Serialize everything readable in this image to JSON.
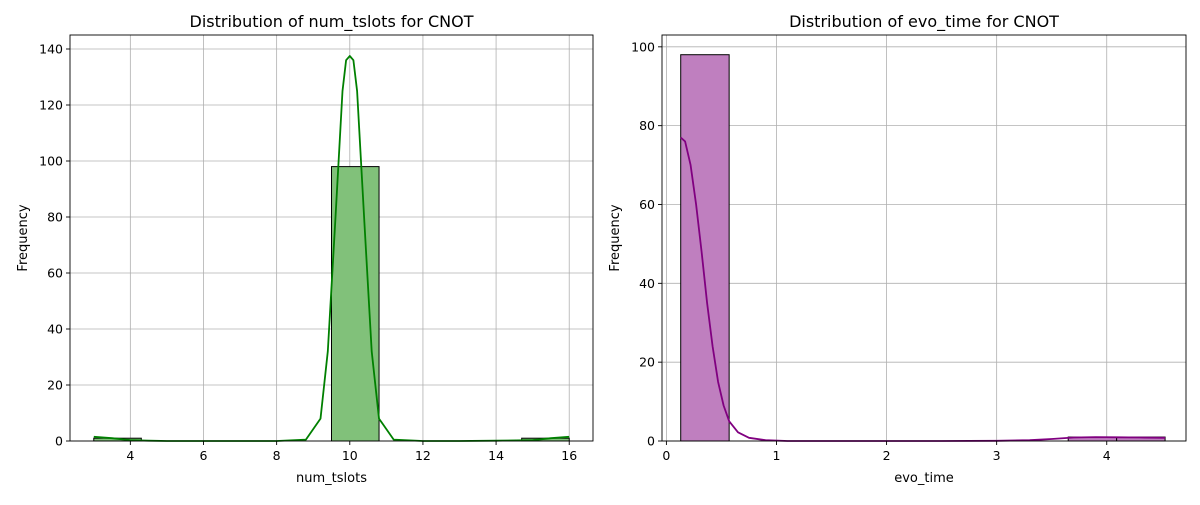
{
  "chart_data": [
    {
      "type": "bar",
      "title": "Distribution of num_tslots for CNOT",
      "xlabel": "num_tslots",
      "ylabel": "Frequency",
      "xlim": [
        2.35,
        16.65
      ],
      "ylim": [
        0,
        145
      ],
      "xticks": [
        4,
        6,
        8,
        10,
        12,
        14,
        16
      ],
      "yticks": [
        0,
        20,
        40,
        60,
        80,
        100,
        120,
        140
      ],
      "grid": true,
      "bar_fill": "#81c17a",
      "bar_edge": "#000000",
      "kde_color": "#008000",
      "bins": [
        {
          "x0": 3.0,
          "x1": 4.3,
          "count": 1
        },
        {
          "x0": 9.5,
          "x1": 10.8,
          "count": 98
        },
        {
          "x0": 14.7,
          "x1": 16.0,
          "count": 1
        }
      ],
      "kde": {
        "x": [
          3.0,
          3.5,
          4.0,
          4.5,
          5.0,
          6.0,
          7.0,
          8.0,
          8.8,
          9.2,
          9.4,
          9.6,
          9.8,
          9.9,
          10.0,
          10.1,
          10.2,
          10.4,
          10.6,
          10.8,
          11.2,
          12.0,
          13.0,
          14.0,
          15.0,
          15.5,
          16.0
        ],
        "y": [
          1.5,
          1.0,
          0.3,
          0.1,
          0.0,
          0.0,
          0.0,
          0.0,
          0.5,
          8,
          32,
          78,
          125,
          136,
          137.5,
          136,
          125,
          78,
          32,
          8,
          0.5,
          0.0,
          0.0,
          0.1,
          0.3,
          1.0,
          1.5
        ]
      }
    },
    {
      "type": "bar",
      "title": "Distribution of evo_time for CNOT",
      "xlabel": "evo_time",
      "ylabel": "Frequency",
      "xlim": [
        -0.04,
        4.72
      ],
      "ylim": [
        0,
        103
      ],
      "xticks": [
        0,
        1,
        2,
        3,
        4
      ],
      "yticks": [
        0,
        20,
        40,
        60,
        80,
        100
      ],
      "grid": true,
      "bar_fill": "#bf7fbf",
      "bar_edge": "#000000",
      "kde_color": "#800080",
      "bins": [
        {
          "x0": 0.13,
          "x1": 0.57,
          "count": 98
        },
        {
          "x0": 3.65,
          "x1": 4.09,
          "count": 1
        },
        {
          "x0": 4.09,
          "x1": 4.53,
          "count": 1
        }
      ],
      "kde": {
        "x": [
          0.13,
          0.17,
          0.22,
          0.27,
          0.32,
          0.37,
          0.42,
          0.47,
          0.52,
          0.57,
          0.65,
          0.75,
          0.9,
          1.1,
          1.5,
          2.0,
          2.5,
          3.0,
          3.3,
          3.5,
          3.7,
          3.9,
          4.1,
          4.3,
          4.53
        ],
        "y": [
          77,
          76,
          70,
          60,
          48,
          35,
          24,
          15,
          9,
          5,
          2.2,
          0.8,
          0.2,
          0.0,
          0.0,
          0.0,
          0.0,
          0.05,
          0.2,
          0.5,
          0.9,
          1.0,
          0.95,
          0.9,
          0.8
        ]
      }
    }
  ]
}
